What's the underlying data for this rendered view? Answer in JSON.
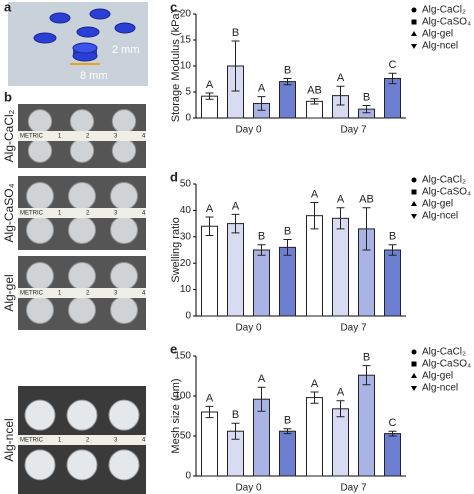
{
  "panel_a": {
    "label": "a",
    "height_label": "2 mm",
    "diameter_label": "8 mm"
  },
  "panel_b": {
    "label": "b",
    "rows": [
      "Alg-CaCl₂",
      "Alg-CaSO₄",
      "Alg-gel",
      "Alg-ncel"
    ],
    "ruler": [
      "METRIC",
      "1",
      "2",
      "3",
      "4"
    ]
  },
  "chart_data": [
    {
      "type": "bar",
      "label": "c",
      "y_label": "Storage Modulus (kPa)",
      "categories": [
        "Day 0",
        "Day 7"
      ],
      "ylim": [
        0,
        20
      ],
      "yticks": [
        0,
        5,
        10,
        15,
        20
      ],
      "series": [
        {
          "name": "Alg-CaCl₂",
          "marker": "circle",
          "color": "#ffffff",
          "values": [
            4.2,
            3.2
          ],
          "errors": [
            0.6,
            0.5
          ],
          "letters": [
            "A",
            "AB"
          ]
        },
        {
          "name": "Alg-CaSO₄",
          "marker": "square",
          "color": "#d8dbf2",
          "values": [
            10,
            4.3
          ],
          "errors": [
            4.8,
            1.8
          ],
          "letters": [
            "B",
            "A"
          ]
        },
        {
          "name": "Alg-gel",
          "marker": "triangle",
          "color": "#aab3e6",
          "values": [
            2.8,
            1.7
          ],
          "errors": [
            1.3,
            0.7
          ],
          "letters": [
            "A",
            "B"
          ]
        },
        {
          "name": "Alg-ncel",
          "marker": "down-triangle",
          "color": "#6d7fd0",
          "values": [
            7,
            7.6
          ],
          "errors": [
            0.6,
            1.0
          ],
          "letters": [
            "B",
            "C"
          ]
        }
      ]
    },
    {
      "type": "bar",
      "label": "d",
      "y_label": "Swelling ratio",
      "categories": [
        "Day 0",
        "Day 7"
      ],
      "ylim": [
        0,
        50
      ],
      "yticks": [
        0,
        10,
        20,
        30,
        40,
        50
      ],
      "series": [
        {
          "name": "Alg-CaCl₂",
          "marker": "circle",
          "color": "#ffffff",
          "values": [
            34,
            38
          ],
          "errors": [
            3.5,
            5
          ],
          "letters": [
            "A",
            "A"
          ]
        },
        {
          "name": "Alg-CaSO₄",
          "marker": "square",
          "color": "#d8dbf2",
          "values": [
            35,
            37
          ],
          "errors": [
            3.5,
            4
          ],
          "letters": [
            "A",
            "A"
          ]
        },
        {
          "name": "Alg-gel",
          "marker": "triangle",
          "color": "#aab3e6",
          "values": [
            25,
            33
          ],
          "errors": [
            2,
            8
          ],
          "letters": [
            "B",
            "AB"
          ]
        },
        {
          "name": "Alg-ncel",
          "marker": "down-triangle",
          "color": "#6d7fd0",
          "values": [
            26,
            25
          ],
          "errors": [
            3,
            2
          ],
          "letters": [
            "B",
            "B"
          ]
        }
      ]
    },
    {
      "type": "bar",
      "label": "e",
      "y_label": "Mesh size (nm)",
      "categories": [
        "Day 0",
        "Day 7"
      ],
      "ylim": [
        0,
        150
      ],
      "yticks": [
        0,
        50,
        100,
        150
      ],
      "series": [
        {
          "name": "Alg-CaCl₂",
          "marker": "circle",
          "color": "#ffffff",
          "values": [
            80,
            98
          ],
          "errors": [
            7,
            7
          ],
          "letters": [
            "A",
            "A"
          ]
        },
        {
          "name": "Alg-CaSO₄",
          "marker": "square",
          "color": "#d8dbf2",
          "values": [
            56,
            84
          ],
          "errors": [
            10,
            10
          ],
          "letters": [
            "B",
            "A"
          ]
        },
        {
          "name": "Alg-gel",
          "marker": "triangle",
          "color": "#aab3e6",
          "values": [
            96,
            126
          ],
          "errors": [
            15,
            12
          ],
          "letters": [
            "A",
            "B"
          ]
        },
        {
          "name": "Alg-ncel",
          "marker": "down-triangle",
          "color": "#6d7fd0",
          "values": [
            56,
            53
          ],
          "errors": [
            3,
            3
          ],
          "letters": [
            "B",
            "C"
          ]
        }
      ]
    }
  ]
}
